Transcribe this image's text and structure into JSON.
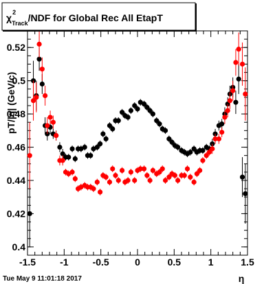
{
  "title": {
    "symbol": "χ",
    "superscript": "2",
    "subscript": "Track",
    "rest": "/NDF for Global Rec All EtapT"
  },
  "timestamp": "Tue May  9 11:01:18 2017",
  "chart_data": {
    "type": "scatter",
    "xlabel": "η",
    "ylabel": "pT/|q| (GeV/c)",
    "xlim": [
      -1.5,
      1.5
    ],
    "ylim": [
      0.395,
      0.53
    ],
    "xticks": [
      "-1.5",
      "-1",
      "-0.5",
      "0",
      "0.5",
      "1",
      "1.5"
    ],
    "yticks": [
      "0.4",
      "0.42",
      "0.44",
      "0.46",
      "0.48",
      "0.5",
      "0.52"
    ],
    "colors": {
      "series_black": "#000000",
      "series_red": "#ff0000"
    },
    "series": [
      {
        "color": "#000000",
        "points": [
          {
            "x": -1.47,
            "y": 0.42,
            "err": 0.02
          },
          {
            "x": -1.42,
            "y": 0.5,
            "err": 0.012
          },
          {
            "x": -1.38,
            "y": 0.491,
            "err": 0.009
          },
          {
            "x": -1.34,
            "y": 0.513,
            "err": 0.007
          },
          {
            "x": -1.3,
            "y": 0.498,
            "err": 0.006
          },
          {
            "x": -1.26,
            "y": 0.473,
            "err": 0.005
          },
          {
            "x": -1.23,
            "y": 0.468,
            "err": 0.004
          },
          {
            "x": -1.19,
            "y": 0.472,
            "err": 0.004
          },
          {
            "x": -1.15,
            "y": 0.468,
            "err": 0.003
          },
          {
            "x": -1.11,
            "y": 0.467,
            "err": 0.003
          },
          {
            "x": -1.06,
            "y": 0.46,
            "err": 0.003
          },
          {
            "x": -1.02,
            "y": 0.456,
            "err": 0.003
          },
          {
            "x": -0.98,
            "y": 0.454,
            "err": 0.002
          },
          {
            "x": -0.94,
            "y": 0.454,
            "err": 0.002
          },
          {
            "x": -0.89,
            "y": 0.459,
            "err": 0.002
          },
          {
            "x": -0.85,
            "y": 0.453,
            "err": 0.002
          },
          {
            "x": -0.81,
            "y": 0.459,
            "err": 0.002
          },
          {
            "x": -0.77,
            "y": 0.459,
            "err": 0.002
          },
          {
            "x": -0.72,
            "y": 0.46,
            "err": 0.002
          },
          {
            "x": -0.68,
            "y": 0.455,
            "err": 0.002
          },
          {
            "x": -0.64,
            "y": 0.455,
            "err": 0.002
          },
          {
            "x": -0.6,
            "y": 0.459,
            "err": 0.002
          },
          {
            "x": -0.55,
            "y": 0.46,
            "err": 0.002
          },
          {
            "x": -0.51,
            "y": 0.462,
            "err": 0.002
          },
          {
            "x": -0.47,
            "y": 0.468,
            "err": 0.002
          },
          {
            "x": -0.43,
            "y": 0.465,
            "err": 0.002
          },
          {
            "x": -0.38,
            "y": 0.473,
            "err": 0.002
          },
          {
            "x": -0.34,
            "y": 0.471,
            "err": 0.002
          },
          {
            "x": -0.3,
            "y": 0.476,
            "err": 0.002
          },
          {
            "x": -0.26,
            "y": 0.476,
            "err": 0.002
          },
          {
            "x": -0.21,
            "y": 0.481,
            "err": 0.002
          },
          {
            "x": -0.17,
            "y": 0.479,
            "err": 0.002
          },
          {
            "x": -0.13,
            "y": 0.478,
            "err": 0.002
          },
          {
            "x": -0.09,
            "y": 0.482,
            "err": 0.002
          },
          {
            "x": -0.04,
            "y": 0.485,
            "err": 0.002
          },
          {
            "x": 0.0,
            "y": 0.483,
            "err": 0.002
          },
          {
            "x": 0.04,
            "y": 0.487,
            "err": 0.002
          },
          {
            "x": 0.09,
            "y": 0.486,
            "err": 0.002
          },
          {
            "x": 0.13,
            "y": 0.484,
            "err": 0.002
          },
          {
            "x": 0.17,
            "y": 0.482,
            "err": 0.002
          },
          {
            "x": 0.21,
            "y": 0.48,
            "err": 0.002
          },
          {
            "x": 0.26,
            "y": 0.476,
            "err": 0.002
          },
          {
            "x": 0.3,
            "y": 0.474,
            "err": 0.002
          },
          {
            "x": 0.34,
            "y": 0.471,
            "err": 0.002
          },
          {
            "x": 0.38,
            "y": 0.47,
            "err": 0.002
          },
          {
            "x": 0.43,
            "y": 0.465,
            "err": 0.002
          },
          {
            "x": 0.47,
            "y": 0.463,
            "err": 0.002
          },
          {
            "x": 0.51,
            "y": 0.461,
            "err": 0.002
          },
          {
            "x": 0.55,
            "y": 0.46,
            "err": 0.002
          },
          {
            "x": 0.6,
            "y": 0.458,
            "err": 0.002
          },
          {
            "x": 0.64,
            "y": 0.457,
            "err": 0.002
          },
          {
            "x": 0.68,
            "y": 0.456,
            "err": 0.002
          },
          {
            "x": 0.72,
            "y": 0.457,
            "err": 0.002
          },
          {
            "x": 0.77,
            "y": 0.459,
            "err": 0.002
          },
          {
            "x": 0.81,
            "y": 0.457,
            "err": 0.002
          },
          {
            "x": 0.85,
            "y": 0.458,
            "err": 0.002
          },
          {
            "x": 0.89,
            "y": 0.458,
            "err": 0.002
          },
          {
            "x": 0.94,
            "y": 0.46,
            "err": 0.002
          },
          {
            "x": 0.98,
            "y": 0.459,
            "err": 0.002
          },
          {
            "x": 1.02,
            "y": 0.462,
            "err": 0.003
          },
          {
            "x": 1.06,
            "y": 0.468,
            "err": 0.003
          },
          {
            "x": 1.11,
            "y": 0.473,
            "err": 0.003
          },
          {
            "x": 1.15,
            "y": 0.474,
            "err": 0.003
          },
          {
            "x": 1.19,
            "y": 0.48,
            "err": 0.004
          },
          {
            "x": 1.23,
            "y": 0.486,
            "err": 0.004
          },
          {
            "x": 1.26,
            "y": 0.492,
            "err": 0.005
          },
          {
            "x": 1.3,
            "y": 0.496,
            "err": 0.006
          },
          {
            "x": 1.34,
            "y": 0.487,
            "err": 0.007
          },
          {
            "x": 1.38,
            "y": 0.501,
            "err": 0.009
          },
          {
            "x": 1.43,
            "y": 0.442,
            "err": 0.012
          },
          {
            "x": 1.47,
            "y": 0.432,
            "err": 0.018
          }
        ]
      },
      {
        "color": "#ff0000",
        "points": [
          {
            "x": -1.47,
            "y": 0.455,
            "err": 0.02
          },
          {
            "x": -1.42,
            "y": 0.488,
            "err": 0.012
          },
          {
            "x": -1.38,
            "y": 0.49,
            "err": 0.009
          },
          {
            "x": -1.34,
            "y": 0.522,
            "err": 0.008
          },
          {
            "x": -1.3,
            "y": 0.507,
            "err": 0.007
          },
          {
            "x": -1.26,
            "y": 0.491,
            "err": 0.006
          },
          {
            "x": -1.23,
            "y": 0.473,
            "err": 0.005
          },
          {
            "x": -1.19,
            "y": 0.478,
            "err": 0.004
          },
          {
            "x": -1.15,
            "y": 0.475,
            "err": 0.004
          },
          {
            "x": -1.11,
            "y": 0.467,
            "err": 0.003
          },
          {
            "x": -1.06,
            "y": 0.452,
            "err": 0.003
          },
          {
            "x": -1.02,
            "y": 0.452,
            "err": 0.003
          },
          {
            "x": -0.98,
            "y": 0.445,
            "err": 0.002
          },
          {
            "x": -0.94,
            "y": 0.444,
            "err": 0.002
          },
          {
            "x": -0.89,
            "y": 0.445,
            "err": 0.002
          },
          {
            "x": -0.85,
            "y": 0.441,
            "err": 0.002
          },
          {
            "x": -0.81,
            "y": 0.435,
            "err": 0.002
          },
          {
            "x": -0.77,
            "y": 0.436,
            "err": 0.002
          },
          {
            "x": -0.72,
            "y": 0.437,
            "err": 0.002
          },
          {
            "x": -0.68,
            "y": 0.436,
            "err": 0.002
          },
          {
            "x": -0.64,
            "y": 0.436,
            "err": 0.002
          },
          {
            "x": -0.6,
            "y": 0.435,
            "err": 0.002
          },
          {
            "x": -0.55,
            "y": 0.439,
            "err": 0.002
          },
          {
            "x": -0.51,
            "y": 0.433,
            "err": 0.002
          },
          {
            "x": -0.47,
            "y": 0.443,
            "err": 0.002
          },
          {
            "x": -0.43,
            "y": 0.442,
            "err": 0.002
          },
          {
            "x": -0.38,
            "y": 0.439,
            "err": 0.002
          },
          {
            "x": -0.34,
            "y": 0.447,
            "err": 0.002
          },
          {
            "x": -0.3,
            "y": 0.443,
            "err": 0.002
          },
          {
            "x": -0.26,
            "y": 0.44,
            "err": 0.002
          },
          {
            "x": -0.21,
            "y": 0.446,
            "err": 0.002
          },
          {
            "x": -0.17,
            "y": 0.439,
            "err": 0.002
          },
          {
            "x": -0.13,
            "y": 0.44,
            "err": 0.002
          },
          {
            "x": -0.09,
            "y": 0.445,
            "err": 0.002
          },
          {
            "x": -0.04,
            "y": 0.44,
            "err": 0.002
          },
          {
            "x": 0.0,
            "y": 0.446,
            "err": 0.002
          },
          {
            "x": 0.04,
            "y": 0.447,
            "err": 0.002
          },
          {
            "x": 0.09,
            "y": 0.447,
            "err": 0.002
          },
          {
            "x": 0.13,
            "y": 0.443,
            "err": 0.002
          },
          {
            "x": 0.17,
            "y": 0.44,
            "err": 0.002
          },
          {
            "x": 0.21,
            "y": 0.446,
            "err": 0.002
          },
          {
            "x": 0.26,
            "y": 0.444,
            "err": 0.002
          },
          {
            "x": 0.3,
            "y": 0.445,
            "err": 0.002
          },
          {
            "x": 0.34,
            "y": 0.447,
            "err": 0.002
          },
          {
            "x": 0.38,
            "y": 0.44,
            "err": 0.002
          },
          {
            "x": 0.43,
            "y": 0.442,
            "err": 0.002
          },
          {
            "x": 0.47,
            "y": 0.444,
            "err": 0.002
          },
          {
            "x": 0.51,
            "y": 0.443,
            "err": 0.002
          },
          {
            "x": 0.55,
            "y": 0.44,
            "err": 0.002
          },
          {
            "x": 0.6,
            "y": 0.443,
            "err": 0.002
          },
          {
            "x": 0.64,
            "y": 0.443,
            "err": 0.002
          },
          {
            "x": 0.68,
            "y": 0.447,
            "err": 0.002
          },
          {
            "x": 0.72,
            "y": 0.442,
            "err": 0.002
          },
          {
            "x": 0.77,
            "y": 0.439,
            "err": 0.002
          },
          {
            "x": 0.81,
            "y": 0.444,
            "err": 0.002
          },
          {
            "x": 0.85,
            "y": 0.446,
            "err": 0.002
          },
          {
            "x": 0.89,
            "y": 0.452,
            "err": 0.002
          },
          {
            "x": 0.94,
            "y": 0.455,
            "err": 0.002
          },
          {
            "x": 0.98,
            "y": 0.457,
            "err": 0.002
          },
          {
            "x": 1.02,
            "y": 0.459,
            "err": 0.003
          },
          {
            "x": 1.06,
            "y": 0.465,
            "err": 0.003
          },
          {
            "x": 1.11,
            "y": 0.465,
            "err": 0.003
          },
          {
            "x": 1.15,
            "y": 0.469,
            "err": 0.003
          },
          {
            "x": 1.19,
            "y": 0.478,
            "err": 0.004
          },
          {
            "x": 1.23,
            "y": 0.482,
            "err": 0.004
          },
          {
            "x": 1.26,
            "y": 0.488,
            "err": 0.005
          },
          {
            "x": 1.3,
            "y": 0.494,
            "err": 0.006
          },
          {
            "x": 1.34,
            "y": 0.511,
            "err": 0.008
          },
          {
            "x": 1.38,
            "y": 0.519,
            "err": 0.01
          },
          {
            "x": 1.43,
            "y": 0.51,
            "err": 0.013
          },
          {
            "x": 1.47,
            "y": 0.492,
            "err": 0.016
          }
        ]
      }
    ]
  }
}
